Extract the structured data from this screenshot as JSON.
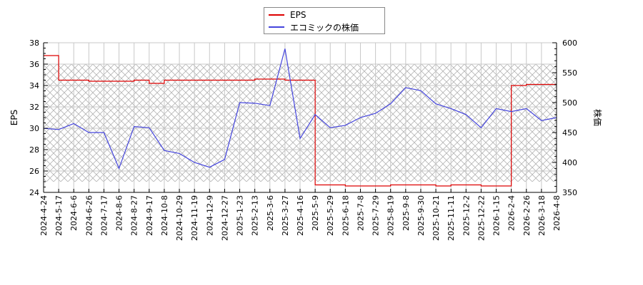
{
  "legend": {
    "items": [
      {
        "label": "EPS",
        "color": "#dd0000"
      },
      {
        "label": "エコミックの株価",
        "color": "#4444dd"
      }
    ]
  },
  "axes": {
    "left_title": "EPS",
    "right_title": "株価"
  },
  "chart_data": {
    "type": "line",
    "title": "",
    "xlabel": "",
    "ylabel": "EPS",
    "y2label": "株価",
    "ylim": [
      24,
      38
    ],
    "y2lim": [
      350,
      600
    ],
    "yticks": [
      24,
      26,
      28,
      30,
      32,
      34,
      36,
      38
    ],
    "y2ticks": [
      350,
      400,
      450,
      500,
      550,
      600
    ],
    "grid": true,
    "legend_position": "top-center",
    "shaded_band": {
      "ymin": 25,
      "ymax": 36,
      "pattern": "crosshatch"
    },
    "categories": [
      "2024-4-24",
      "2024-5-17",
      "2024-6-6",
      "2024-6-26",
      "2024-7-17",
      "2024-8-6",
      "2024-8-27",
      "2024-9-17",
      "2024-10-8",
      "2024-10-29",
      "2024-11-19",
      "2024-12-9",
      "2024-12-27",
      "2025-1-23",
      "2025-2-13",
      "2025-3-6",
      "2025-3-27",
      "2025-4-16",
      "2025-5-9",
      "2025-5-29",
      "2025-6-18",
      "2025-7-8",
      "2025-7-29",
      "2025-8-19",
      "2025-9-8",
      "2025-9-30",
      "2025-10-21",
      "2025-11-11",
      "2025-12-2",
      "2025-12-22",
      "2026-1-15",
      "2026-2-4",
      "2026-2-26",
      "2026-3-18",
      "2026-4-8"
    ],
    "series": [
      {
        "name": "EPS",
        "axis": "left",
        "color": "#dd0000",
        "values": [
          36.8,
          34.5,
          34.5,
          34.4,
          34.4,
          34.4,
          34.5,
          34.2,
          34.5,
          34.5,
          34.5,
          34.5,
          34.5,
          34.5,
          34.6,
          34.6,
          34.5,
          34.5,
          24.7,
          24.7,
          24.6,
          24.6,
          24.6,
          24.7,
          24.7,
          24.7,
          24.6,
          24.7,
          24.7,
          24.6,
          24.6,
          34.0,
          34.1,
          34.1,
          34.1
        ]
      },
      {
        "name": "エコミックの株価",
        "axis": "right",
        "color": "#4444dd",
        "values": [
          457,
          455,
          465,
          450,
          450,
          390,
          460,
          458,
          420,
          415,
          400,
          392,
          405,
          500,
          499,
          495,
          590,
          440,
          480,
          458,
          462,
          475,
          482,
          498,
          525,
          520,
          498,
          490,
          480,
          458,
          490,
          485,
          490,
          470,
          475
        ]
      }
    ]
  }
}
